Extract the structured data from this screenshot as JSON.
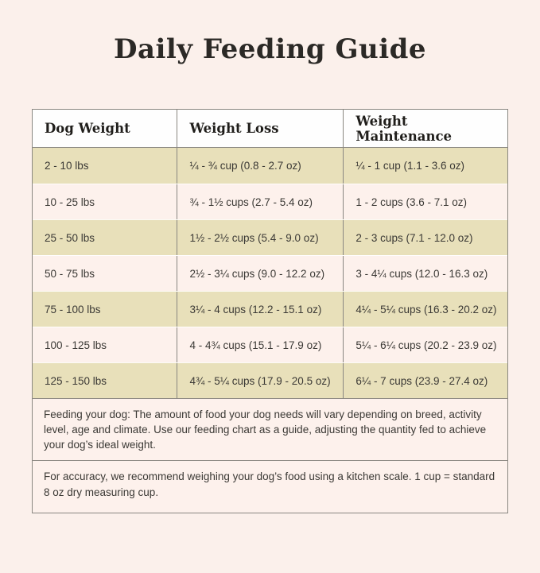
{
  "page": {
    "title": "Daily Feeding Guide"
  },
  "table": {
    "headers": [
      "Dog Weight",
      "Weight Loss",
      "Weight Maintenance"
    ],
    "rows": [
      [
        "2 - 10 lbs",
        "¼ - ¾ cup (0.8 - 2.7 oz)",
        "¼ - 1 cup (1.1 - 3.6 oz)"
      ],
      [
        "10 - 25 lbs",
        "¾ - 1½ cups (2.7 - 5.4 oz)",
        "1 - 2 cups (3.6 - 7.1 oz)"
      ],
      [
        "25 - 50 lbs",
        "1½ - 2½ cups (5.4 - 9.0 oz)",
        "2 - 3 cups (7.1 - 12.0 oz)"
      ],
      [
        "50 - 75 lbs",
        "2½ - 3¼ cups (9.0 - 12.2 oz)",
        "3 - 4¼ cups (12.0 - 16.3 oz)"
      ],
      [
        "75 - 100 lbs",
        "3¼ - 4 cups (12.2 - 15.1 oz)",
        "4¼ - 5¼ cups (16.3 - 20.2 oz)"
      ],
      [
        "100 - 125 lbs",
        "4 - 4¾ cups (15.1 - 17.9 oz)",
        "5¼ - 6¼ cups (20.2 - 23.9 oz)"
      ],
      [
        "125 - 150 lbs",
        "4¾ - 5¼ cups (17.9 - 20.5 oz)",
        "6¼ - 7 cups (23.9 - 27.4 oz)"
      ]
    ]
  },
  "notes": {
    "feeding": "Feeding your dog: The amount of food your dog needs will vary depending on breed, activity level, age and climate. Use our feeding chart as a guide, adjusting the quantity fed to achieve your dog’s ideal weight.",
    "accuracy": "For accuracy, we recommend weighing your dog’s food using a kitchen scale. 1 cup = standard 8 oz dry measuring cup."
  },
  "colors": {
    "page-bg": "#fbf0eb",
    "header-bg": "#fefefe",
    "row-alt-bg": "#e8e0ba",
    "row-bg": "#fdf1ec",
    "border-gray": "#8a8781",
    "title-color": "#2b2926",
    "text-color": "#3b3935"
  }
}
